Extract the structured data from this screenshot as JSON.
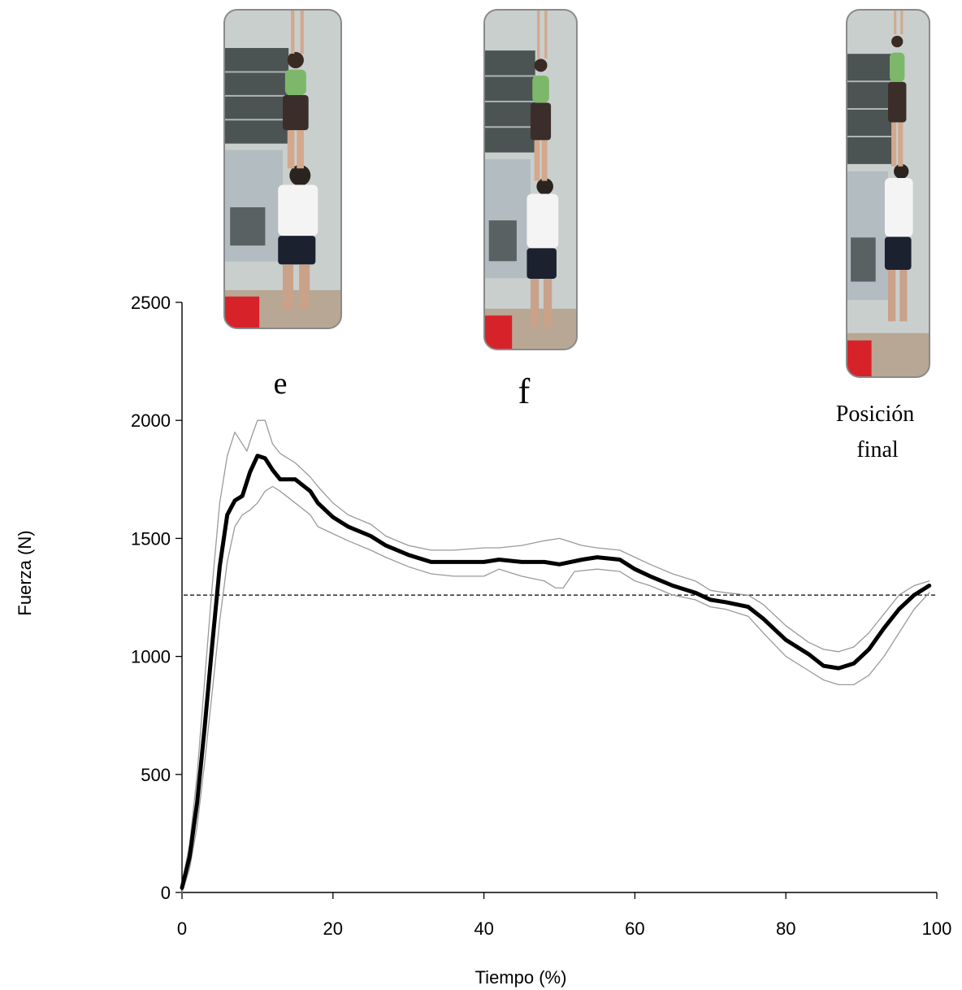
{
  "chart_data": {
    "type": "line",
    "xlabel": "Tiempo (%)",
    "ylabel": "Fuerza (N)",
    "xlim": [
      0,
      100
    ],
    "ylim": [
      0,
      2500
    ],
    "x_ticks": [
      "0",
      "20",
      "40",
      "60",
      "80",
      "100"
    ],
    "y_ticks": [
      "0",
      "500",
      "1000",
      "1500",
      "2000",
      "2500"
    ],
    "grid": false,
    "legend": "none",
    "reference_line": {
      "y": 1260,
      "style": "dashed"
    },
    "phase_labels": [
      {
        "text": "e",
        "x": 13
      },
      {
        "text": "f",
        "x": 45
      },
      {
        "text": "Posición",
        "x": 93
      },
      {
        "text": "final",
        "x": 93
      }
    ],
    "series": [
      {
        "role": "mean",
        "color": "#000000",
        "x": [
          0,
          1,
          2,
          3,
          4,
          5,
          6,
          7,
          8,
          9,
          10,
          11,
          12,
          13,
          15,
          17,
          18,
          20,
          22,
          25,
          27,
          30,
          33,
          36,
          40,
          42,
          45,
          48,
          50,
          53,
          55,
          58,
          60,
          62,
          65,
          68,
          70,
          72,
          75,
          77,
          80,
          83,
          85,
          87,
          89,
          91,
          93,
          95,
          97,
          99
        ],
        "y": [
          20,
          150,
          380,
          700,
          1050,
          1380,
          1600,
          1660,
          1680,
          1780,
          1850,
          1840,
          1790,
          1750,
          1750,
          1700,
          1650,
          1590,
          1550,
          1510,
          1470,
          1430,
          1400,
          1400,
          1400,
          1410,
          1400,
          1400,
          1390,
          1410,
          1420,
          1410,
          1370,
          1340,
          1300,
          1270,
          1240,
          1230,
          1210,
          1160,
          1070,
          1010,
          960,
          950,
          970,
          1030,
          1120,
          1200,
          1260,
          1300
        ]
      },
      {
        "role": "upper",
        "color": "#9a9a9a",
        "x": [
          0,
          1,
          2,
          3,
          4,
          5,
          6,
          7,
          8,
          8.6,
          9.2,
          10,
          11,
          12,
          13,
          15,
          17,
          18,
          20,
          22,
          25,
          27,
          30,
          33,
          36,
          40,
          42,
          45,
          48,
          50,
          53,
          55,
          58,
          60,
          62,
          65,
          68,
          70,
          72,
          75,
          77,
          80,
          83,
          85,
          87,
          89,
          91,
          93,
          95,
          97,
          99
        ],
        "y": [
          40,
          200,
          500,
          900,
          1300,
          1650,
          1850,
          1950,
          1900,
          1870,
          1930,
          2000,
          2000,
          1900,
          1860,
          1820,
          1760,
          1720,
          1650,
          1600,
          1560,
          1510,
          1470,
          1450,
          1450,
          1460,
          1460,
          1470,
          1490,
          1500,
          1470,
          1460,
          1450,
          1420,
          1390,
          1350,
          1320,
          1280,
          1270,
          1260,
          1220,
          1130,
          1060,
          1030,
          1020,
          1040,
          1100,
          1180,
          1260,
          1300,
          1320
        ]
      },
      {
        "role": "lower",
        "color": "#9a9a9a",
        "x": [
          0,
          1,
          2,
          3,
          4,
          5,
          6,
          7,
          8,
          9,
          10,
          11,
          12,
          13,
          15,
          17,
          18,
          20,
          22,
          25,
          27,
          30,
          33,
          36,
          40,
          42,
          45,
          48,
          49.5,
          50.5,
          52,
          55,
          58,
          60,
          62,
          65,
          68,
          70,
          72,
          75,
          77,
          80,
          83,
          85,
          87,
          89,
          91,
          93,
          95,
          97,
          99
        ],
        "y": [
          0,
          100,
          280,
          550,
          850,
          1150,
          1400,
          1550,
          1600,
          1620,
          1650,
          1700,
          1720,
          1700,
          1650,
          1600,
          1550,
          1520,
          1490,
          1450,
          1420,
          1380,
          1350,
          1340,
          1340,
          1370,
          1340,
          1320,
          1290,
          1290,
          1360,
          1370,
          1360,
          1320,
          1300,
          1260,
          1240,
          1210,
          1200,
          1170,
          1100,
          1000,
          940,
          900,
          880,
          880,
          920,
          1000,
          1100,
          1200,
          1270
        ]
      }
    ]
  },
  "photos": [
    {
      "label": "acrobatic-pair-photo-e",
      "pose": "e"
    },
    {
      "label": "acrobatic-pair-photo-f",
      "pose": "f"
    },
    {
      "label": "acrobatic-pair-photo-final",
      "pose": "final"
    }
  ]
}
